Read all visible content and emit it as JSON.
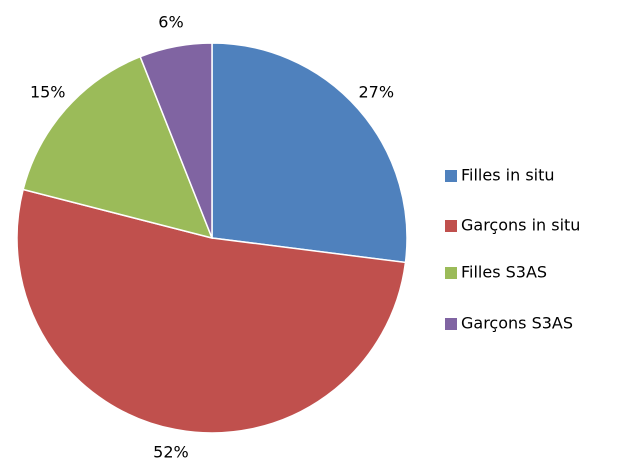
{
  "chart_data": {
    "type": "pie",
    "categories": [
      "Filles in situ",
      "Garçons in situ",
      "Filles S3AS",
      "Garçons S3AS"
    ],
    "values": [
      27,
      52,
      15,
      6
    ],
    "value_labels": [
      "27%",
      "52%",
      "15%",
      "6%"
    ],
    "colors": [
      "#4f81bd",
      "#c0504d",
      "#9bbb59",
      "#8064a2"
    ],
    "legend": "right"
  }
}
